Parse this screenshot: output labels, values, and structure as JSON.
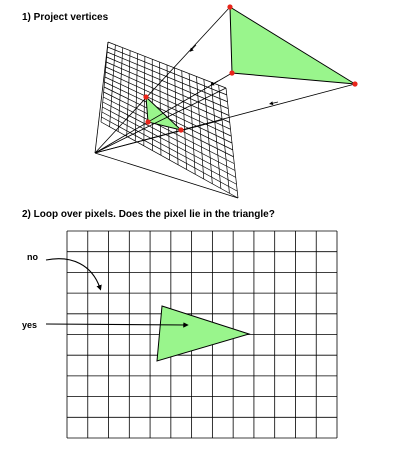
{
  "step1": {
    "title": "1) Project vertices"
  },
  "step2": {
    "title": "2) Loop over pixels. Does the pixel lie in the triangle?",
    "label_no": "no",
    "label_yes": "yes"
  },
  "colors": {
    "triangle_fill": "#99f58c",
    "vertex": "#e8251a",
    "line": "#000000",
    "background": "#ffffff"
  }
}
